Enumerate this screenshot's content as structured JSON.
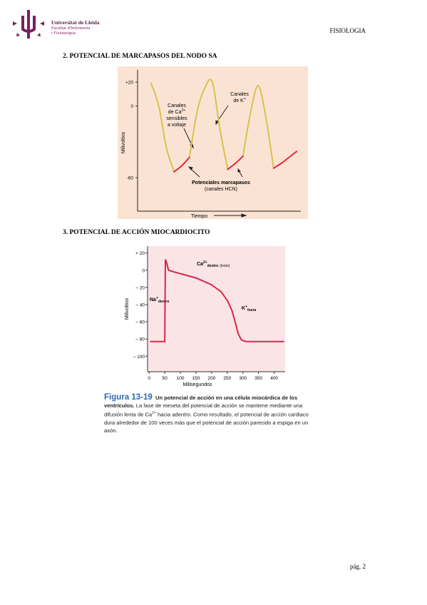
{
  "header": {
    "institution": [
      "Universitat de Lleida",
      "Facultat d'Infermeria",
      "i Fisioteràpia"
    ],
    "subject": "FISIOLOGIA"
  },
  "sections": [
    {
      "heading": "2. POTENCIAL DE MARCAPASOS DEL NODO SA"
    },
    {
      "heading": "3. POTENCIAL DE ACCIÓN MIOCARDIOCITO"
    }
  ],
  "figures": [
    {
      "type": "line",
      "ylabel": "Milivoltios",
      "xlabel": "Tiempo",
      "ylim": [
        -88,
        32
      ],
      "yticks": [
        {
          "value": 20,
          "label": "+20"
        },
        0,
        -60
      ],
      "series": [
        {
          "color": "#d8c24c",
          "values": [
            19,
            0,
            -35,
            -55,
            null,
            -43,
            -5,
            15,
            20,
            -20,
            -53,
            null,
            -42,
            -5,
            17,
            -10,
            -52,
            null,
            null,
            null
          ]
        },
        {
          "color": "#e0283e",
          "values": [
            null,
            null,
            null,
            -55,
            -50,
            -43,
            null,
            null,
            null,
            null,
            -53,
            -48,
            -42,
            null,
            null,
            null,
            -52,
            -48,
            -43,
            -38
          ]
        }
      ],
      "annotations": {
        "ca": {
          "lines": [
            "Canales",
            "de Ca",
            "sensibles",
            "a voltaje"
          ],
          "sup": "2+"
        },
        "k": {
          "lines": [
            "Canales",
            "de K"
          ],
          "sup": "+"
        },
        "hcn": [
          "Potenciales marcapasos",
          "(canales HCN)"
        ]
      }
    },
    {
      "type": "line",
      "ylabel": "Milivoltios",
      "xlabel": "Milisegundos",
      "xlim": [
        -5,
        435
      ],
      "xticks": [
        0,
        50,
        100,
        150,
        200,
        250,
        300,
        350,
        400
      ],
      "ylim": [
        -118,
        28
      ],
      "yticks": [
        {
          "value": 20,
          "label": "+ 20"
        },
        0,
        {
          "value": -20,
          "label": "– 20"
        },
        {
          "value": -40,
          "label": "– 40"
        },
        {
          "value": -60,
          "label": "– 60"
        },
        {
          "value": -80,
          "label": "– 80"
        },
        {
          "value": -100,
          "label": "– 100"
        }
      ],
      "series": [
        {
          "color": "#d6274a",
          "x": [
            5,
            50,
            52,
            55,
            62,
            80,
            100,
            150,
            200,
            230,
            250,
            265,
            275,
            285,
            295,
            310,
            350,
            430
          ],
          "values": [
            -83,
            -83,
            12,
            10,
            0,
            -2,
            -4,
            -9,
            -17,
            -25,
            -35,
            -47,
            -60,
            -74,
            -81,
            -83,
            -83,
            -83
          ]
        }
      ],
      "annotations": {
        "ca": {
          "base": "Ca",
          "sup": "2+",
          "sub": "dentro",
          "note": "(lento)"
        },
        "na": {
          "base": "Na",
          "sup": "+",
          "sub": "dentro"
        },
        "k": {
          "base": "K",
          "sup": "+",
          "sub": "fuera"
        }
      }
    }
  ],
  "caption": {
    "label": "Figura 13-19",
    "title": "Un potencial de acción en una célula miocárdica de los ventrículos.",
    "text1": "La fase de meseta del potencial de acción se mantiene mediante una difusión lenta de Ca",
    "sup": "2+",
    "text2": " hacia adentro. Como resultado, el potencial de acción cardiaco dura alrededor de 100 veces más que el potencial de acción parecido a espiga en un axón."
  },
  "footer": "pág. 2"
}
